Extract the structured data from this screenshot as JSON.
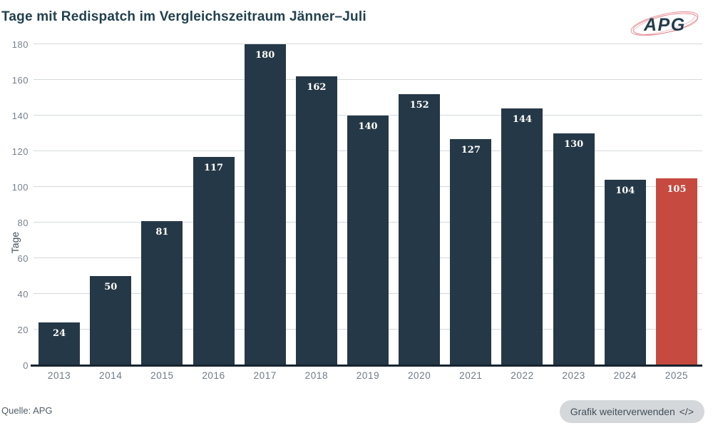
{
  "header": {
    "logo_text": "APG"
  },
  "footer": {
    "source": "Quelle: APG",
    "reuse_label": "Grafik weiterverwenden",
    "code_icon": "</>"
  },
  "chart_data": {
    "type": "bar",
    "title": "Tage mit Redispatch im Vergleichszeitraum Jänner–Juli",
    "xlabel": "",
    "ylabel": "Tage",
    "categories": [
      "2013",
      "2014",
      "2015",
      "2016",
      "2017",
      "2018",
      "2019",
      "2020",
      "2021",
      "2022",
      "2023",
      "2024",
      "2025"
    ],
    "values": [
      24,
      50,
      81,
      117,
      180,
      162,
      140,
      152,
      127,
      144,
      130,
      104,
      105
    ],
    "yticks": [
      0,
      20,
      40,
      60,
      80,
      100,
      120,
      140,
      160,
      180
    ],
    "ylim": [
      0,
      180
    ],
    "grid": true,
    "legend_position": "none",
    "bar_color": "#253847",
    "highlight_category": "2025",
    "highlight_color": "#c64a40",
    "value_label_color": "#ffffff",
    "title_color": "#22404f",
    "axis_label_color": "#6e7b85"
  }
}
